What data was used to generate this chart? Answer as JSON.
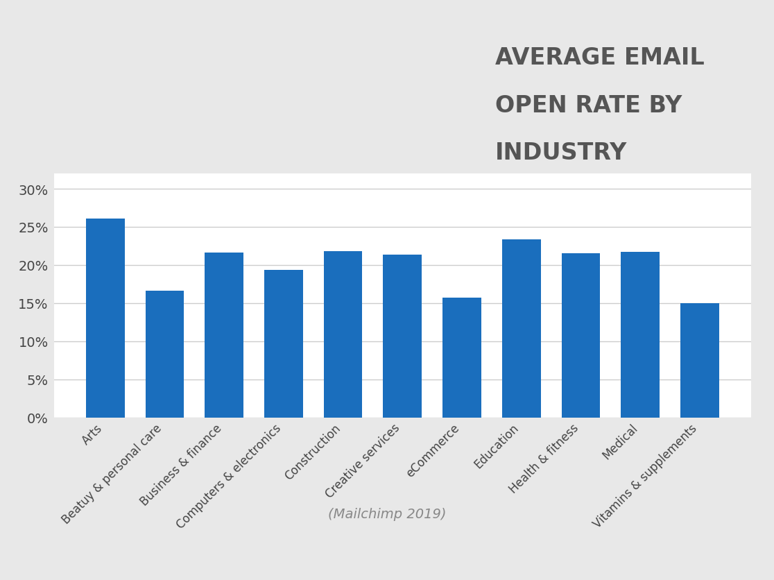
{
  "categories": [
    "Arts",
    "Beatuy & personal care",
    "Business & finance",
    "Computers & electronics",
    "Construction",
    "Creative services",
    "eCommerce",
    "Education",
    "Health & fitness",
    "Medical",
    "Vitamins & supplements"
  ],
  "values": [
    0.261,
    0.166,
    0.216,
    0.194,
    0.218,
    0.214,
    0.157,
    0.234,
    0.215,
    0.217,
    0.15
  ],
  "bar_color": "#1a6ebd",
  "background_color": "#e8e8e8",
  "plot_bg_color": "#ffffff",
  "title_line1": "AVERAGE EMAIL",
  "title_line2": "OPEN RATE BY",
  "title_line3": "INDUSTRY",
  "title_color": "#555555",
  "title_fontsize": 24,
  "subtitle": "(Mailchimp 2019)",
  "subtitle_fontsize": 14,
  "subtitle_color": "#888888",
  "ytick_values": [
    0,
    0.05,
    0.1,
    0.15,
    0.2,
    0.25,
    0.3
  ],
  "ylim": [
    0,
    0.32
  ],
  "grid_color": "#cccccc",
  "ytick_fontsize": 14,
  "xtick_fontsize": 12
}
